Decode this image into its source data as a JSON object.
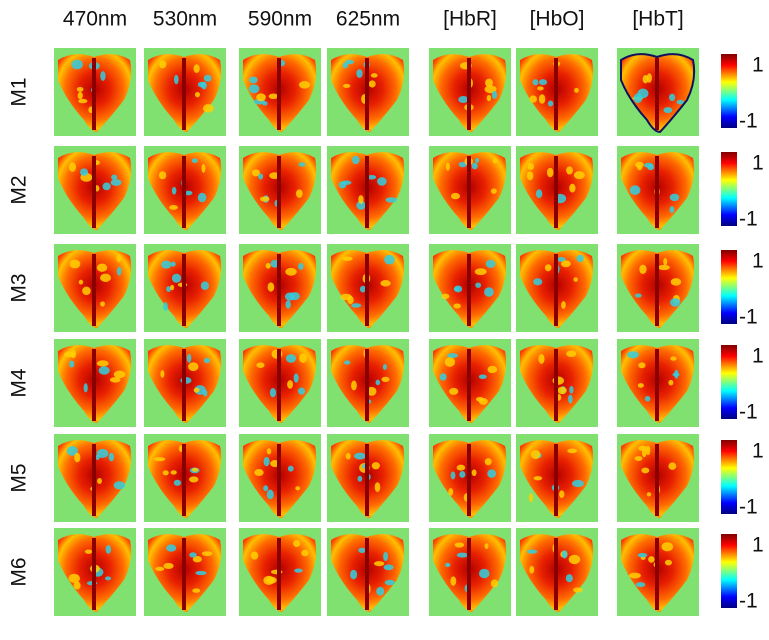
{
  "columns": [
    "470nm",
    "530nm",
    "590nm",
    "625nm",
    "[HbR]",
    "[HbO]",
    "[HbT]"
  ],
  "rows": [
    "M1",
    "M2",
    "M3",
    "M4",
    "M5",
    "M6"
  ],
  "colorbar": {
    "max_label": "1",
    "min_label": "-1"
  }
}
